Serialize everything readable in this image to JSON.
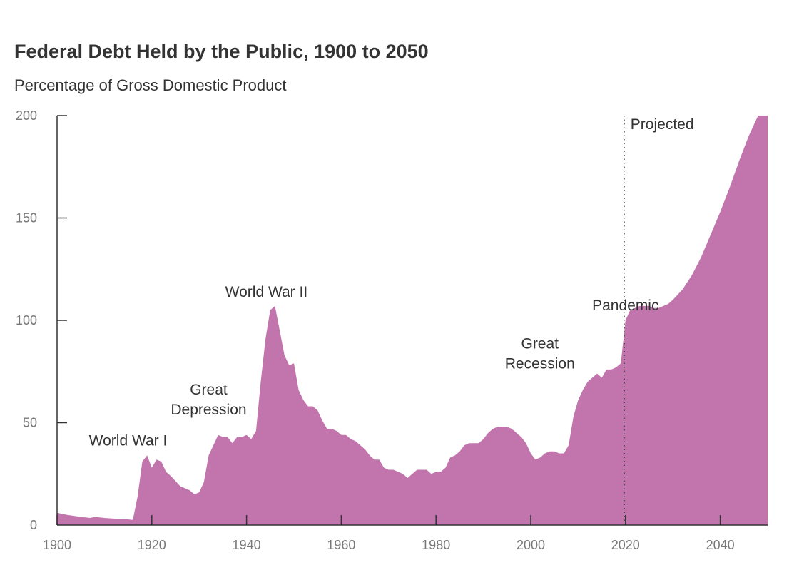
{
  "chart_data": {
    "type": "area",
    "title": "Federal Debt Held by the Public, 1900 to 2050",
    "subtitle": "Percentage of Gross Domestic Product",
    "xlabel": "",
    "ylabel": "",
    "xlim": [
      1900,
      2050
    ],
    "ylim": [
      0,
      200
    ],
    "x_ticks": [
      1900,
      1920,
      1940,
      1960,
      1980,
      2000,
      2020,
      2040
    ],
    "y_ticks": [
      0,
      50,
      100,
      150,
      200
    ],
    "grid": false,
    "projection_start": 2020,
    "projection_label": "Projected",
    "fill_color": "#c175ac",
    "annotations": [
      {
        "lines": [
          "World War I"
        ],
        "x": 1918,
        "y": 34
      },
      {
        "lines": [
          "Great",
          "Depression"
        ],
        "x": 1932,
        "y": 40
      },
      {
        "lines": [
          "World War II"
        ],
        "x": 1946,
        "y": 106
      },
      {
        "lines": [
          "Great",
          "Recession"
        ],
        "x": 2009,
        "y": 66
      },
      {
        "lines": [
          "Pandemic"
        ],
        "x": 2020,
        "y": 100
      }
    ],
    "series": [
      {
        "x": [
          1900,
          1902,
          1905,
          1907,
          1908,
          1910,
          1913,
          1914,
          1916,
          1917,
          1918,
          1919,
          1920,
          1921,
          1922,
          1923,
          1924,
          1926,
          1928,
          1929,
          1930,
          1931,
          1932,
          1933,
          1934,
          1935,
          1936,
          1937,
          1938,
          1939,
          1940,
          1941,
          1942,
          1943,
          1944,
          1945,
          1946,
          1947,
          1948,
          1949,
          1950,
          1951,
          1952,
          1953,
          1954,
          1955,
          1956,
          1957,
          1958,
          1959,
          1960,
          1961,
          1962,
          1963,
          1964,
          1965,
          1966,
          1967,
          1968,
          1969,
          1970,
          1971,
          1972,
          1973,
          1974,
          1975,
          1976,
          1977,
          1978,
          1979,
          1980,
          1981,
          1982,
          1983,
          1984,
          1985,
          1986,
          1987,
          1988,
          1989,
          1990,
          1991,
          1992,
          1993,
          1994,
          1995,
          1996,
          1997,
          1998,
          1999,
          2000,
          2001,
          2002,
          2003,
          2004,
          2005,
          2006,
          2007,
          2008,
          2009,
          2010,
          2011,
          2012,
          2013,
          2014,
          2015,
          2016,
          2017,
          2018,
          2019,
          2020,
          2021,
          2022,
          2023,
          2024,
          2025,
          2026,
          2027,
          2028,
          2029,
          2030,
          2032,
          2034,
          2036,
          2038,
          2040,
          2042,
          2044,
          2046,
          2048,
          2050
        ],
        "values": [
          6,
          5,
          4,
          3.5,
          4,
          3.5,
          3,
          3,
          2.5,
          14,
          31,
          34,
          28,
          32,
          31,
          26,
          24,
          19,
          17,
          15,
          16,
          21,
          34,
          39,
          44,
          43,
          43,
          40,
          43,
          43,
          44,
          42,
          46,
          70,
          91,
          105,
          107,
          95,
          83,
          78,
          79,
          66,
          61,
          58,
          58,
          56,
          51,
          47,
          47,
          46,
          44,
          44,
          42,
          41,
          39,
          37,
          34,
          32,
          32,
          28,
          27,
          27,
          26,
          25,
          23,
          25,
          27,
          27,
          27,
          25,
          26,
          26,
          28,
          33,
          34,
          36,
          39,
          40,
          40,
          40,
          42,
          45,
          47,
          48,
          48,
          48,
          47,
          45,
          43,
          40,
          35,
          32,
          33,
          35,
          36,
          36,
          35,
          35,
          39,
          53,
          61,
          66,
          70,
          72,
          74,
          72,
          76,
          76,
          77,
          79,
          100,
          105,
          106,
          107,
          107,
          107,
          106,
          106,
          107,
          108,
          110,
          115,
          122,
          131,
          142,
          153,
          165,
          178,
          190,
          203,
          215
        ]
      }
    ]
  }
}
